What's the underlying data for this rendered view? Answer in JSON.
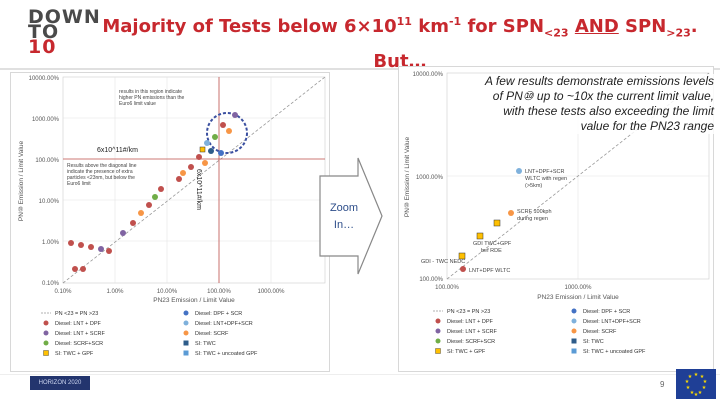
{
  "logo": {
    "line1": "DOWN",
    "line2": "TO",
    "line3": "10"
  },
  "title": {
    "part1": "Majority of Tests below 6×10",
    "exp1": "11",
    "part2": " km",
    "exp2": "-1",
    "part3": " for SPN",
    "sub1": "<23",
    "part4": " ",
    "and": "AND",
    "part5": " SPN",
    "sub2": ">23",
    "part6": ".",
    "line2": "But…"
  },
  "callout": "A few results demonstrate emissions levels of PN⑩ up to ~10x the current limit value, with these tests also exceeding the limit value for the PN23 range",
  "zoom": {
    "label": "Zoom In…"
  },
  "left_chart": {
    "ylabel": "PN⑩ Emission / Limit Value",
    "xlabel": "PN23 Emission / Limit Value",
    "y_ticks": [
      "10000.00%",
      "1000.00%",
      "100.00%",
      "10.00%",
      "1.00%",
      "0.10%"
    ],
    "x_ticks": [
      "0.10%",
      "1.00%",
      "10.00%",
      "100.00%",
      "1000.00%"
    ],
    "annotation_top": "results in this region indicate higher PN emissions than the Euro6 limit value",
    "annotation_mid": "Results above the diagonal line indicate the presence of extra particles <23nm, but below the Euro6 limit",
    "vertical_label": "6x10^11#/km",
    "horizontal_label": "6x10^11#/km",
    "legend": [
      "PN <23 = PN >23",
      "Diesel: DPF + SCR",
      "Diesel: LNT + DPF",
      "Diesel: LNT+DPF+SCR",
      "Diesel: LNT + SCRF",
      "Diesel: SCRF",
      "Diesel: SCRF+SCR",
      "SI: TWC",
      "SI: TWC + GPF",
      "SI: TWC + uncoated GPF"
    ]
  },
  "right_chart": {
    "ylabel": "PN⑩ Emission / Limit Value",
    "xlabel": "PN23 Emission / Limit Value",
    "y_ticks": [
      "10000.00%",
      "1000.00%",
      "100.00%"
    ],
    "x_ticks": [
      "100.00%",
      "1000.00%"
    ],
    "annotations": [
      "LNT+DPF+SCR WLTC with regen (>5km)",
      "SCRF 100kph during regen",
      "GDI TWC+GPF bef RDE",
      "GDI - TWC NEDC",
      "LNT+DPF WLTC"
    ],
    "legend": [
      "PN <23 = PN >23",
      "Diesel: DPF + SCR",
      "Diesel: LNT + DPF",
      "Diesel: LNT+DPF+SCR",
      "Diesel: LNT + SCRF",
      "Diesel: SCRF",
      "Diesel: SCRF+SCR",
      "SI: TWC",
      "SI: TWC + GPF",
      "SI: TWC + uncoated GPF"
    ]
  },
  "legend_colors": [
    "#999999",
    "#4472c4",
    "#c0504d",
    "#7fb1dc",
    "#8064a2",
    "#f79646",
    "#70ad47",
    "#2e5c8a",
    "#ffc000",
    "#5b9bd5"
  ],
  "footer": {
    "page": "9",
    "project": "HORIZON 2020"
  },
  "colors": {
    "title": "#c7282e",
    "brand_blue": "#1f3f96"
  }
}
